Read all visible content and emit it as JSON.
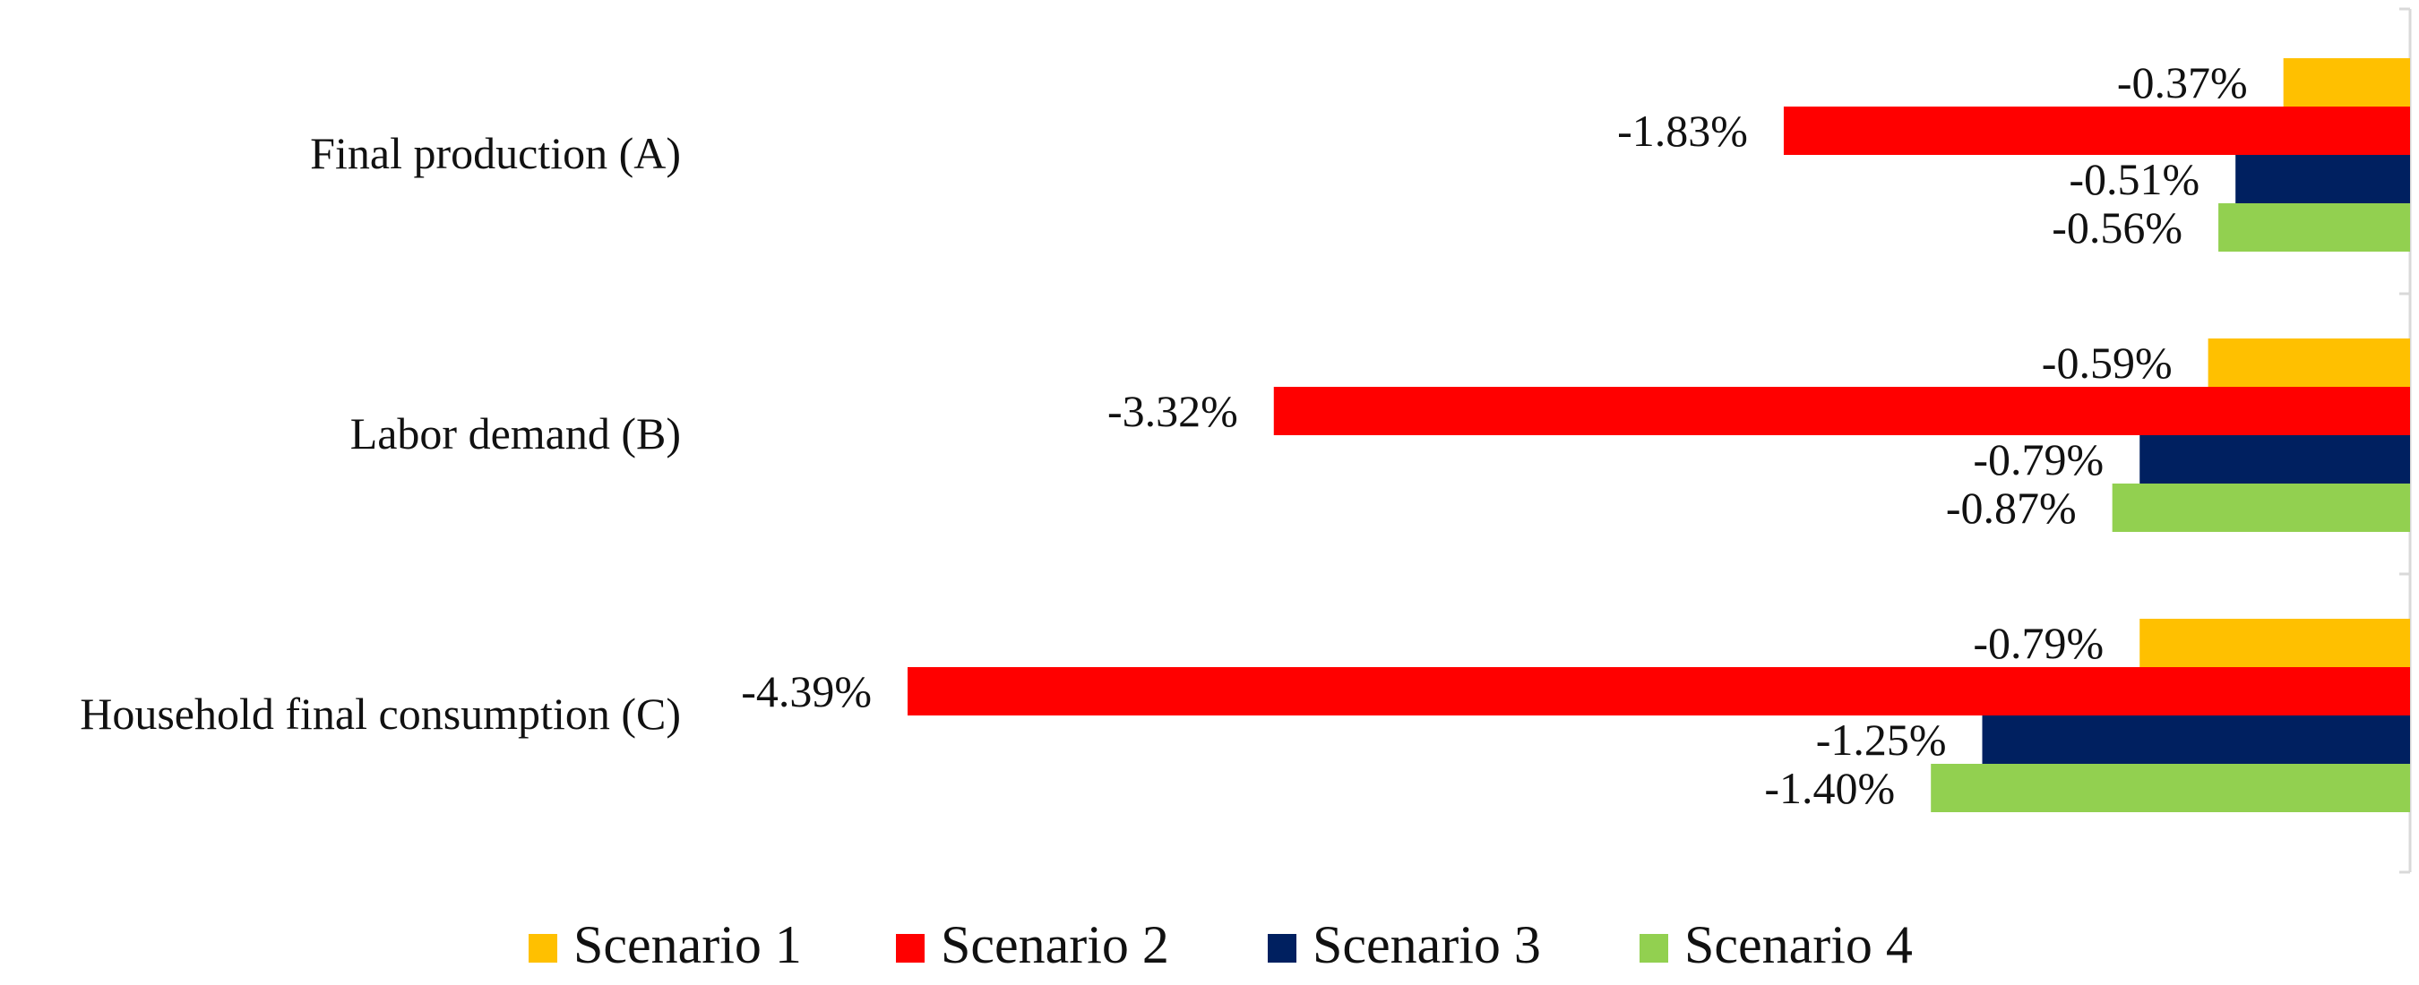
{
  "chart_data": {
    "type": "bar",
    "orientation": "horizontal",
    "categories": [
      "Final production (A)",
      "Labor demand (B)",
      "Household final consumption (C)"
    ],
    "series": [
      {
        "name": "Scenario 1",
        "color": "#FFC000",
        "values": [
          -0.37,
          -0.59,
          -0.79
        ],
        "labels": [
          "-0.37%",
          "-0.59%",
          "-0.79%"
        ]
      },
      {
        "name": "Scenario 2",
        "color": "#FF0000",
        "values": [
          -1.83,
          -3.32,
          -4.39
        ],
        "labels": [
          "-1.83%",
          "-3.32%",
          "-4.39%"
        ]
      },
      {
        "name": "Scenario 3",
        "color": "#002060",
        "values": [
          -0.51,
          -0.79,
          -1.25
        ],
        "labels": [
          "-0.51%",
          "-0.79%",
          "-1.25%"
        ]
      },
      {
        "name": "Scenario 4",
        "color": "#92D050",
        "values": [
          -0.56,
          -0.87,
          -1.4
        ],
        "labels": [
          "-0.56%",
          "-0.87%",
          "-1.40%"
        ]
      }
    ],
    "value_unit": "%",
    "legend_position": "bottom",
    "grid": false
  }
}
